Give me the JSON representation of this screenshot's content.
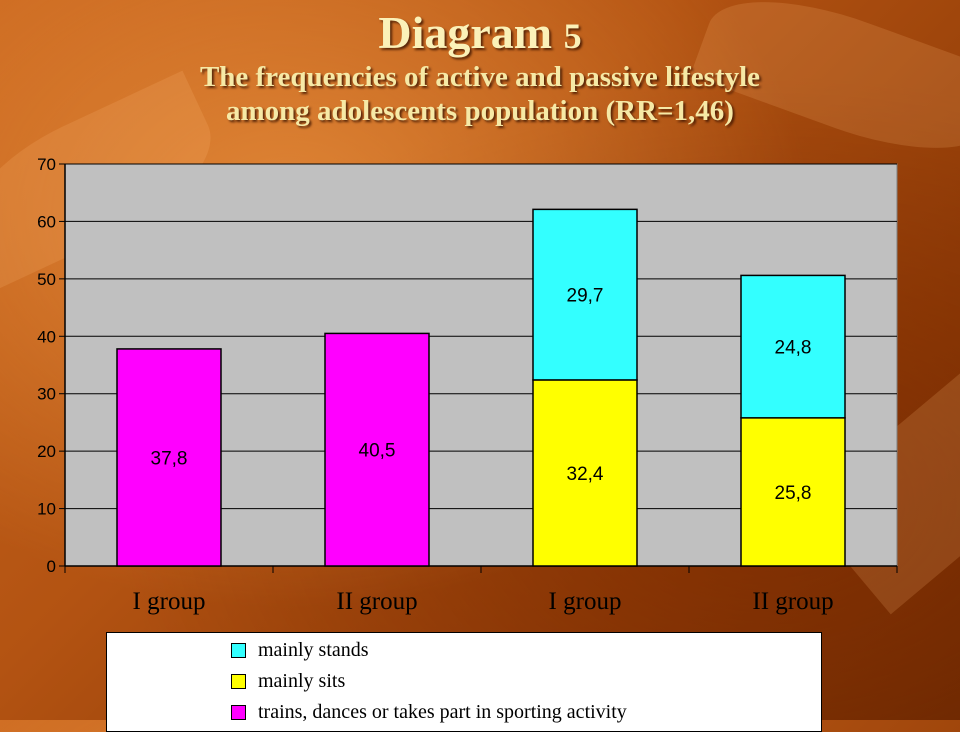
{
  "slide": {
    "title_word": "Diagram",
    "title_number": "5",
    "subtitle_line1_lead": "The",
    "subtitle_line1_rest": " frequencies  of active and  passive lifestyle",
    "subtitle_line2": "among adolescents population  (RR=1,46)"
  },
  "colors": {
    "mainly_stands": "#33ffff",
    "mainly_sits": "#ffff00",
    "active": "#ff00ff",
    "plot_background": "#c0c0c0"
  },
  "chart_data": {
    "type": "bar",
    "stacked": true,
    "categories": [
      "I group",
      "II  group",
      "I group",
      "II  group"
    ],
    "series": [
      {
        "name": "trains, dances or takes part in sporting activity",
        "color": "#ff00ff",
        "values": [
          37.8,
          40.5,
          null,
          null
        ],
        "labels": [
          "37,8",
          "40,5",
          "",
          ""
        ]
      },
      {
        "name": "mainly sits",
        "color": "#ffff00",
        "values": [
          null,
          null,
          32.4,
          25.8
        ],
        "labels": [
          "",
          "",
          "32,4",
          "25,8"
        ]
      },
      {
        "name": "mainly stands",
        "color": "#33ffff",
        "values": [
          null,
          null,
          29.7,
          24.8
        ],
        "labels": [
          "",
          "",
          "29,7",
          "24,8"
        ]
      }
    ],
    "y_ticks": [
      "0",
      "10",
      "20",
      "30",
      "40",
      "50",
      "60",
      "70"
    ],
    "ylim": [
      0,
      70
    ],
    "grid": true,
    "legend": {
      "position": "bottom",
      "entries": [
        "mainly stands",
        "mainly sits",
        "trains, dances or takes part in sporting activity"
      ]
    }
  }
}
